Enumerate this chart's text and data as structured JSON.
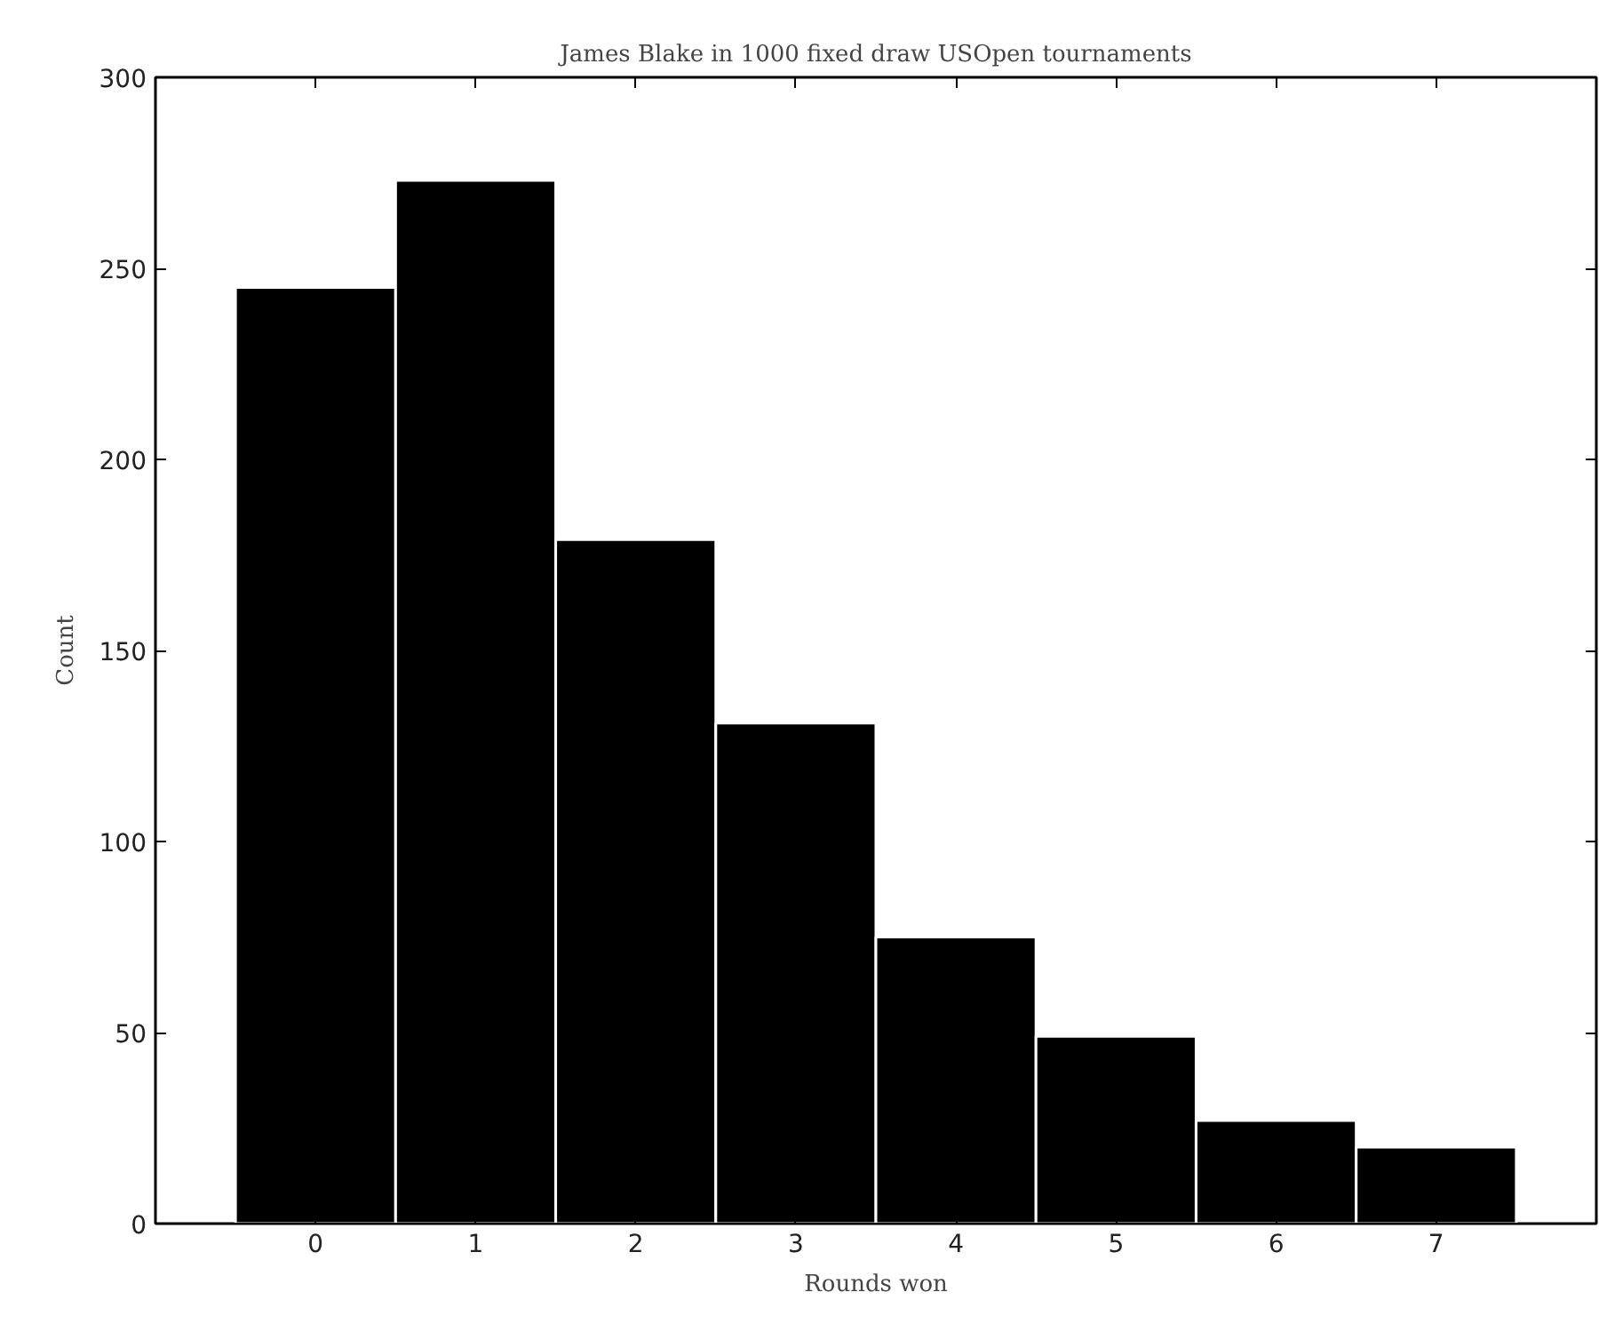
{
  "chart_data": {
    "type": "histogram",
    "title": "James Blake in 1000 fixed draw USOpen tournaments",
    "xlabel": "Rounds won",
    "ylabel": "Count",
    "bins": [
      -0.5,
      0.5,
      1.5,
      2.5,
      3.5,
      4.5,
      5.5,
      6.5,
      7.5
    ],
    "values": [
      245,
      273,
      179,
      131,
      75,
      49,
      27,
      20
    ],
    "color": "#000000",
    "xlim": [
      -1,
      8
    ],
    "xticks": [
      0,
      1,
      2,
      3,
      4,
      5,
      6,
      7
    ],
    "ylim": [
      0,
      300
    ],
    "yticks": [
      0,
      50,
      100,
      150,
      200,
      250,
      300
    ],
    "grid": false
  }
}
